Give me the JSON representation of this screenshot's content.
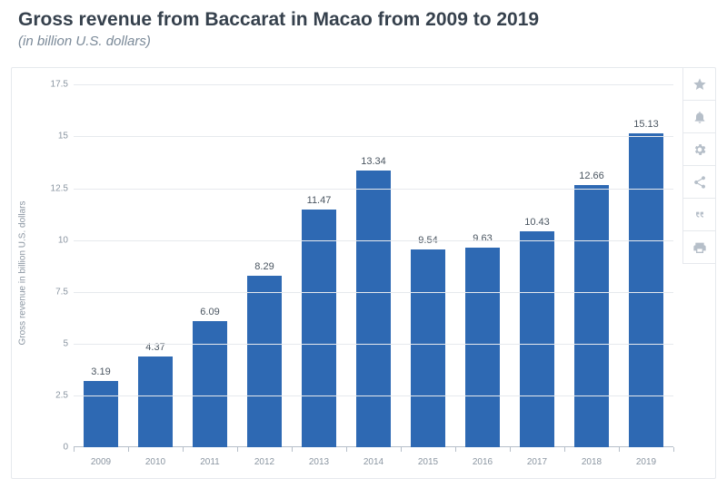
{
  "header": {
    "title": "Gross revenue from Baccarat in Macao from 2009 to 2019",
    "subtitle": "(in billion U.S. dollars)"
  },
  "chart": {
    "type": "bar",
    "y_axis_label": "Gross revenue in billion U.S. dollars",
    "ylim": [
      0,
      17.5
    ],
    "ytick_step": 2.5,
    "y_ticks": [
      "0",
      "2.5",
      "5",
      "7.5",
      "10",
      "12.5",
      "15",
      "17.5"
    ],
    "categories": [
      "2009",
      "2010",
      "2011",
      "2012",
      "2013",
      "2014",
      "2015",
      "2016",
      "2017",
      "2018",
      "2019"
    ],
    "values": [
      3.19,
      4.37,
      6.09,
      8.29,
      11.47,
      13.34,
      9.54,
      9.63,
      10.43,
      12.66,
      15.13
    ],
    "value_labels": [
      "3.19",
      "4.37",
      "6.09",
      "8.29",
      "11.47",
      "13.34",
      "9.54",
      "9.63",
      "10.43",
      "12.66",
      "15.13"
    ],
    "bar_color": "#2e69b3",
    "bar_width_ratio": 0.62,
    "grid_color": "#e6e9ed",
    "background_color": "#ffffff",
    "label_fontsize": 11,
    "tick_fontsize": 10,
    "axis_label_fontsize": 10
  },
  "toolbar": {
    "items": [
      "favorite",
      "notify",
      "settings",
      "share",
      "cite",
      "print"
    ]
  }
}
